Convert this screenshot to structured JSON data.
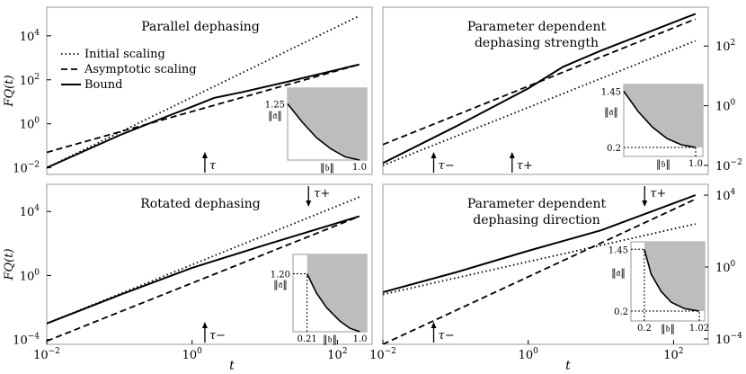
{
  "chart_data": [
    {
      "type": "line",
      "title": "Parallel dephasing",
      "xlabel": "",
      "ylabel": "F_Q(t)",
      "log_x": true,
      "log_y": true,
      "xlim": [
        0.01,
        300
      ],
      "ylim": [
        0.005,
        200000
      ],
      "y_ticks": [
        "10^4",
        "10^2",
        "10^0",
        "10^-2"
      ],
      "y_tick_values": [
        10000,
        100,
        1,
        0.01
      ],
      "y_axis_side": "left",
      "legend": [
        "Initial scaling",
        "Asymptotic scaling",
        "Bound"
      ],
      "legend_position": "top-left",
      "markers": [
        {
          "label": "τ",
          "t": 1.5,
          "direction": "up"
        }
      ],
      "series": [
        {
          "name": "Initial scaling",
          "style": "dotted",
          "x": [
            0.01,
            200
          ],
          "y": [
            0.01,
            80000
          ]
        },
        {
          "name": "Asymptotic scaling",
          "style": "dashed",
          "x": [
            0.01,
            200
          ],
          "y": [
            0.05,
            500
          ]
        },
        {
          "name": "Bound",
          "style": "solid",
          "x": [
            0.01,
            0.1,
            0.5,
            1,
            2,
            5,
            20,
            200
          ],
          "y": [
            0.01,
            0.3,
            2.5,
            6,
            15,
            28,
            80,
            500
          ]
        }
      ],
      "inset": {
        "y_label": "‖𝔞‖",
        "x_label": "‖𝔟‖",
        "y_marks": [
          {
            "text": "1.25",
            "value": 1.25
          }
        ],
        "x_marks": [
          {
            "text": "1.0",
            "value": 1.0
          }
        ],
        "boundary": [
          [
            0,
            1.25
          ],
          [
            0.2,
            0.85
          ],
          [
            0.4,
            0.5
          ],
          [
            0.6,
            0.25
          ],
          [
            0.8,
            0.07
          ],
          [
            1.0,
            0.0
          ]
        ]
      }
    },
    {
      "type": "line",
      "title": "Parameter dependent dephasing strength",
      "xlabel": "",
      "ylabel": "",
      "log_x": true,
      "log_y": true,
      "xlim": [
        0.01,
        300
      ],
      "ylim": [
        0.005,
        2000
      ],
      "y_ticks": [
        "10^2",
        "10^0",
        "10^-2"
      ],
      "y_tick_values": [
        100,
        1,
        0.01
      ],
      "y_axis_side": "right",
      "markers": [
        {
          "label": "τ−",
          "t": 0.05,
          "direction": "up"
        },
        {
          "label": "τ+",
          "t": 0.6,
          "direction": "up"
        }
      ],
      "series": [
        {
          "name": "Initial scaling",
          "style": "dotted",
          "x": [
            0.01,
            200
          ],
          "y": [
            0.01,
            150
          ]
        },
        {
          "name": "Asymptotic scaling",
          "style": "dashed",
          "x": [
            0.01,
            200
          ],
          "y": [
            0.05,
            800
          ]
        },
        {
          "name": "Bound",
          "style": "solid",
          "x": [
            0.01,
            0.1,
            1,
            3,
            10,
            200
          ],
          "y": [
            0.012,
            0.2,
            3.8,
            20,
            70,
            1200
          ]
        }
      ],
      "inset": {
        "y_label": "‖𝔞‖",
        "x_label": "‖𝔟‖",
        "y_marks": [
          {
            "text": "1.45",
            "value": 1.45
          },
          {
            "text": "0.2",
            "value": 0.2
          }
        ],
        "x_marks": [
          {
            "text": "1.0",
            "value": 1.0
          }
        ],
        "boundary": [
          [
            0,
            1.45
          ],
          [
            0.2,
            1.0
          ],
          [
            0.4,
            0.65
          ],
          [
            0.6,
            0.4
          ],
          [
            0.8,
            0.26
          ],
          [
            1.0,
            0.2
          ]
        ]
      }
    },
    {
      "type": "line",
      "title": "Rotated dephasing",
      "xlabel": "t",
      "ylabel": "F_Q(t)",
      "log_x": true,
      "log_y": true,
      "xlim": [
        0.01,
        300
      ],
      "ylim": [
        5e-05,
        500000
      ],
      "x_ticks": [
        "10^-2",
        "10^0",
        "10^2"
      ],
      "x_tick_values": [
        0.01,
        1,
        100
      ],
      "y_ticks": [
        "10^4",
        "10^0",
        "10^-4"
      ],
      "y_tick_values": [
        10000,
        1,
        0.0001
      ],
      "y_axis_side": "left",
      "markers": [
        {
          "label": "τ−",
          "t": 1.5,
          "direction": "up"
        },
        {
          "label": "τ+",
          "t": 40,
          "direction": "down"
        }
      ],
      "series": [
        {
          "name": "Initial scaling",
          "style": "dotted",
          "x": [
            0.01,
            200
          ],
          "y": [
            0.001,
            80000
          ]
        },
        {
          "name": "Asymptotic scaling",
          "style": "dashed",
          "x": [
            0.01,
            200
          ],
          "y": [
            8e-05,
            5000
          ]
        },
        {
          "name": "Bound",
          "style": "solid",
          "x": [
            0.01,
            0.1,
            1,
            10,
            200
          ],
          "y": [
            0.001,
            0.06,
            3,
            80,
            5000
          ]
        }
      ],
      "inset": {
        "y_label": "‖𝔞‖",
        "x_label": "‖𝔟‖",
        "y_marks": [
          {
            "text": "1.20",
            "value": 1.2
          }
        ],
        "x_marks": [
          {
            "text": "0.21",
            "value": 0.21
          },
          {
            "text": "1.0",
            "value": 1.0
          }
        ],
        "boundary": [
          [
            0.21,
            1.2
          ],
          [
            0.35,
            0.8
          ],
          [
            0.5,
            0.5
          ],
          [
            0.7,
            0.22
          ],
          [
            0.85,
            0.07
          ],
          [
            1.0,
            0.0
          ]
        ]
      }
    },
    {
      "type": "line",
      "title": "Parameter dependent dephasing direction",
      "xlabel": "t",
      "ylabel": "",
      "log_x": true,
      "log_y": true,
      "xlim": [
        0.01,
        300
      ],
      "ylim": [
        5e-05,
        40000
      ],
      "x_ticks": [
        "10^-2",
        "10^0",
        "10^2"
      ],
      "x_tick_values": [
        0.01,
        1,
        100
      ],
      "y_ticks": [
        "10^4",
        "10^0",
        "10^-4"
      ],
      "y_tick_values": [
        10000,
        1,
        0.0001
      ],
      "y_axis_side": "right",
      "markers": [
        {
          "label": "τ−",
          "t": 0.05,
          "direction": "up"
        },
        {
          "label": "τ+",
          "t": 40,
          "direction": "down"
        }
      ],
      "series": [
        {
          "name": "Initial scaling",
          "style": "dotted",
          "x": [
            0.01,
            200
          ],
          "y": [
            0.03,
            250
          ]
        },
        {
          "name": "Asymptotic scaling",
          "style": "dashed",
          "x": [
            0.01,
            200
          ],
          "y": [
            5e-05,
            6000
          ]
        },
        {
          "name": "Bound",
          "style": "solid",
          "x": [
            0.01,
            0.1,
            1,
            10,
            200
          ],
          "y": [
            0.04,
            0.5,
            8,
            110,
            10000
          ]
        }
      ],
      "inset": {
        "y_label": "‖𝔞‖",
        "x_label": "‖𝔟‖",
        "y_marks": [
          {
            "text": "1.45",
            "value": 1.45
          },
          {
            "text": "0.2",
            "value": 0.2
          }
        ],
        "x_marks": [
          {
            "text": "0.2",
            "value": 0.2
          },
          {
            "text": "1.02",
            "value": 1.02
          }
        ],
        "boundary": [
          [
            0.2,
            1.45
          ],
          [
            0.3,
            0.95
          ],
          [
            0.45,
            0.6
          ],
          [
            0.6,
            0.38
          ],
          [
            0.8,
            0.25
          ],
          [
            1.02,
            0.2
          ]
        ]
      }
    }
  ]
}
